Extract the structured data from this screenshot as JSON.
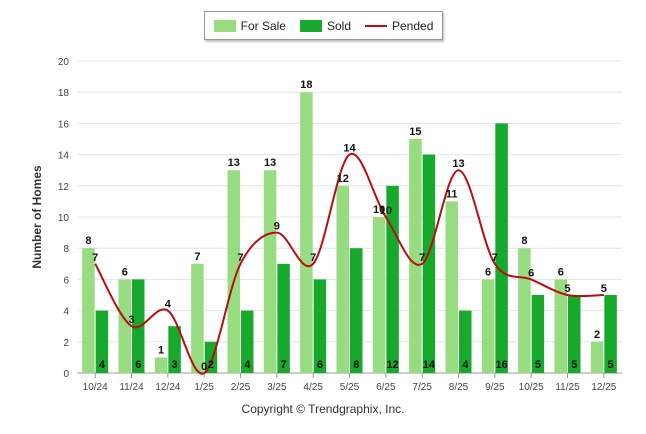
{
  "chart_data": {
    "type": "bar",
    "title": "",
    "xlabel": "",
    "ylabel": "Number of Homes",
    "ylim": [
      0,
      20
    ],
    "yticks": [
      0,
      2,
      4,
      6,
      8,
      10,
      12,
      14,
      16,
      18,
      20
    ],
    "categories": [
      "10/24",
      "11/24",
      "12/24",
      "1/25",
      "2/25",
      "3/25",
      "4/25",
      "5/25",
      "6/25",
      "7/25",
      "8/25",
      "9/25",
      "10/25",
      "11/25",
      "12/25"
    ],
    "series": [
      {
        "name": "For Sale",
        "type": "bar",
        "color": "#98dc82",
        "values": [
          8,
          6,
          1,
          7,
          13,
          13,
          18,
          12,
          10,
          15,
          11,
          6,
          8,
          6,
          2
        ]
      },
      {
        "name": "Sold",
        "type": "bar",
        "color": "#17a92b",
        "values": [
          4,
          6,
          3,
          2,
          4,
          7,
          6,
          8,
          12,
          14,
          4,
          16,
          5,
          5,
          5
        ]
      },
      {
        "name": "Pended",
        "type": "line",
        "color": "#b50f0f",
        "values": [
          7,
          3,
          4,
          0,
          7,
          9,
          7,
          14,
          10,
          7,
          13,
          7,
          6,
          5,
          5
        ]
      }
    ],
    "legend_position": "top-center",
    "grid": true
  },
  "copyright": "Copyright © Trendgraphix, Inc."
}
